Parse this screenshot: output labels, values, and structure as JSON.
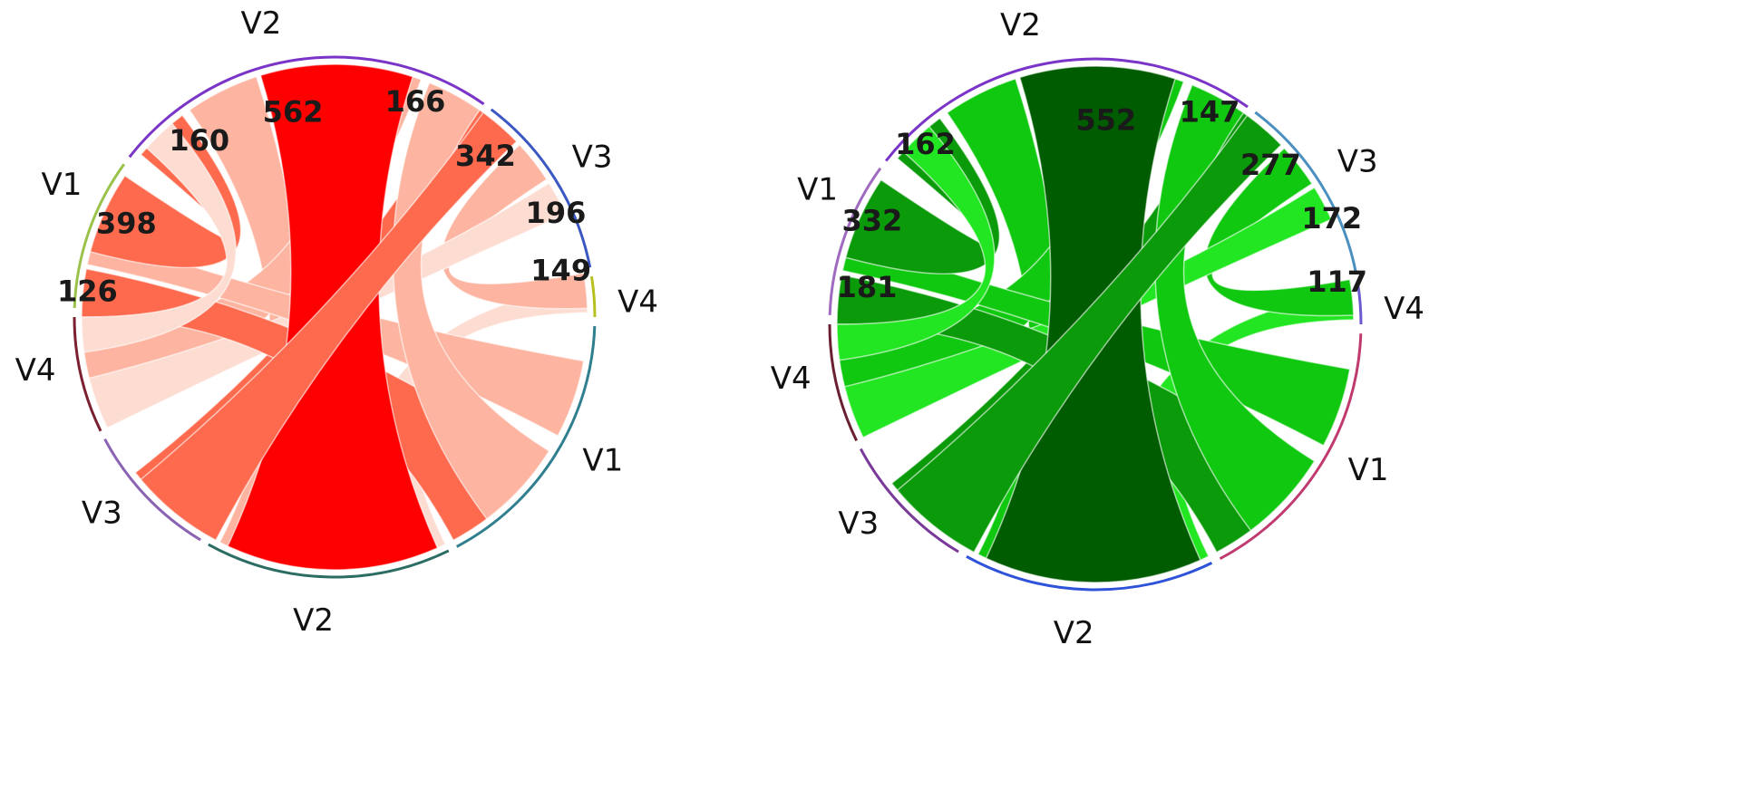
{
  "diagrams": [
    {
      "palette": {
        "strong": "#ff0000",
        "mid": "#fe6a4e",
        "light": "#fdb4a0",
        "pale": "#fddcd2"
      },
      "segment_labels": [
        "V2",
        "V3",
        "V4",
        "V1",
        "V2",
        "V3",
        "V4",
        "V1"
      ],
      "flows": [
        {
          "from": "V2",
          "to": "V2",
          "value": "562"
        },
        {
          "from": "V2",
          "to": "V3",
          "value": "166"
        },
        {
          "from": "V3",
          "to": "V3",
          "value": "342"
        },
        {
          "from": "V3",
          "to": "V1",
          "value": "196"
        },
        {
          "from": "V4",
          "to": "V4",
          "value": "149"
        },
        {
          "from": "V1",
          "to": "V1",
          "value": "398"
        },
        {
          "from": "V1",
          "to": "V2",
          "value": "160"
        },
        {
          "from": "V1",
          "to": "V4",
          "value": "126"
        }
      ]
    },
    {
      "palette": {
        "strong": "#005c00",
        "mid": "#0a9a0a",
        "light": "#10c810",
        "pale": "#22e622"
      },
      "segment_labels": [
        "V2",
        "V3",
        "V4",
        "V1",
        "V2",
        "V3",
        "V4",
        "V1"
      ],
      "flows": [
        {
          "from": "V2",
          "to": "V2",
          "value": "552"
        },
        {
          "from": "V2",
          "to": "V3",
          "value": "147"
        },
        {
          "from": "V3",
          "to": "V3",
          "value": "277"
        },
        {
          "from": "V3",
          "to": "V1",
          "value": "172"
        },
        {
          "from": "V4",
          "to": "V4",
          "value": "117"
        },
        {
          "from": "V1",
          "to": "V1",
          "value": "332"
        },
        {
          "from": "V1",
          "to": "V2",
          "value": "162"
        },
        {
          "from": "V1",
          "to": "V4",
          "value": "181"
        }
      ]
    }
  ]
}
